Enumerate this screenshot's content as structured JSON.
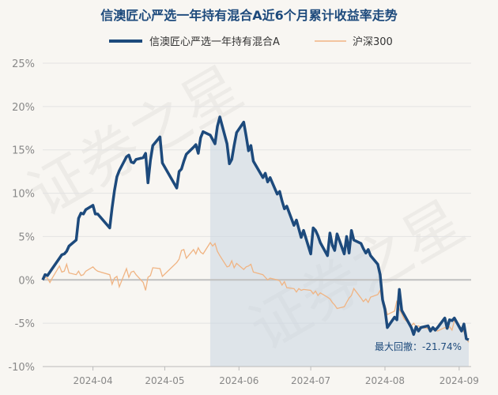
{
  "chart_data": {
    "type": "line",
    "title": "信澳匠心严选一年持有混合A近6个月累计收益率走势",
    "legend_position": "top",
    "ylim": [
      -10,
      25
    ],
    "y_ticks": [
      "25%",
      "20%",
      "15%",
      "10%",
      "5%",
      "0%",
      "-5%",
      "-10%"
    ],
    "y_tick_values": [
      25,
      20,
      15,
      10,
      5,
      0,
      -5,
      -10
    ],
    "x_range": [
      "2024-03-11",
      "2024-09-06"
    ],
    "x_ticks": [
      "2024-04",
      "2024-05",
      "2024-06",
      "2024-07",
      "2024-08",
      "2024-09"
    ],
    "x_tick_dates": [
      "2024-04-01",
      "2024-05-01",
      "2024-06-01",
      "2024-07-01",
      "2024-08-01",
      "2024-09-01"
    ],
    "grid": true,
    "drawdown_region": [
      "2024-05-20",
      "2024-09-06"
    ],
    "annotation": "最大回撤：-21.74%",
    "colors": {
      "fund": "#1d4a7c",
      "index": "#f0b483",
      "shade": "#c9d6e2",
      "zero": "#c0c0c0",
      "grid": "#e3e3e3",
      "axis_text": "#888888",
      "title": "#1d4a7c"
    },
    "series": [
      {
        "name": "信澳匠心严选一年持有混合A",
        "points": [
          [
            "2024-03-11",
            0
          ],
          [
            "2024-03-12",
            0.6
          ],
          [
            "2024-03-13",
            0.5
          ],
          [
            "2024-03-14",
            0.9
          ],
          [
            "2024-03-15",
            1.3
          ],
          [
            "2024-03-18",
            2.5
          ],
          [
            "2024-03-19",
            2.9
          ],
          [
            "2024-03-20",
            3.0
          ],
          [
            "2024-03-21",
            3.3
          ],
          [
            "2024-03-22",
            3.9
          ],
          [
            "2024-03-25",
            4.6
          ],
          [
            "2024-03-26",
            7.1
          ],
          [
            "2024-03-27",
            7.7
          ],
          [
            "2024-03-28",
            7.6
          ],
          [
            "2024-03-29",
            8.1
          ],
          [
            "2024-04-01",
            8.6
          ],
          [
            "2024-04-02",
            7.6
          ],
          [
            "2024-04-03",
            7.6
          ],
          [
            "2024-04-08",
            6.0
          ],
          [
            "2024-04-09",
            8.3
          ],
          [
            "2024-04-10",
            10.3
          ],
          [
            "2024-04-11",
            11.9
          ],
          [
            "2024-04-12",
            12.6
          ],
          [
            "2024-04-15",
            14.2
          ],
          [
            "2024-04-16",
            14.4
          ],
          [
            "2024-04-17",
            13.6
          ],
          [
            "2024-04-18",
            13.5
          ],
          [
            "2024-04-19",
            13.9
          ],
          [
            "2024-04-22",
            14.1
          ],
          [
            "2024-04-23",
            14.6
          ],
          [
            "2024-04-24",
            11.2
          ],
          [
            "2024-04-25",
            13.8
          ],
          [
            "2024-04-26",
            15.5
          ],
          [
            "2024-04-29",
            16.5
          ],
          [
            "2024-04-30",
            13.5
          ],
          [
            "2024-05-06",
            10.6
          ],
          [
            "2024-05-07",
            12.5
          ],
          [
            "2024-05-08",
            12.8
          ],
          [
            "2024-05-09",
            13.7
          ],
          [
            "2024-05-10",
            14.5
          ],
          [
            "2024-05-13",
            15.3
          ],
          [
            "2024-05-14",
            15.6
          ],
          [
            "2024-05-15",
            14.6
          ],
          [
            "2024-05-16",
            16.4
          ],
          [
            "2024-05-17",
            17.1
          ],
          [
            "2024-05-20",
            16.7
          ],
          [
            "2024-05-21",
            16.2
          ],
          [
            "2024-05-22",
            15.7
          ],
          [
            "2024-05-23",
            17.7
          ],
          [
            "2024-05-24",
            18.8
          ],
          [
            "2024-05-27",
            15.7
          ],
          [
            "2024-05-28",
            13.4
          ],
          [
            "2024-05-29",
            13.9
          ],
          [
            "2024-05-30",
            15.5
          ],
          [
            "2024-05-31",
            17.0
          ],
          [
            "2024-06-03",
            18.2
          ],
          [
            "2024-06-04",
            16.6
          ],
          [
            "2024-06-05",
            14.9
          ],
          [
            "2024-06-06",
            15.5
          ],
          [
            "2024-06-07",
            13.7
          ],
          [
            "2024-06-11",
            11.8
          ],
          [
            "2024-06-12",
            12.3
          ],
          [
            "2024-06-13",
            11.3
          ],
          [
            "2024-06-14",
            11.8
          ],
          [
            "2024-06-17",
            9.9
          ],
          [
            "2024-06-18",
            10.2
          ],
          [
            "2024-06-19",
            9.1
          ],
          [
            "2024-06-20",
            8.2
          ],
          [
            "2024-06-21",
            8.5
          ],
          [
            "2024-06-24",
            6.3
          ],
          [
            "2024-06-25",
            6.9
          ],
          [
            "2024-06-26",
            5.9
          ],
          [
            "2024-06-27",
            4.9
          ],
          [
            "2024-06-28",
            5.7
          ],
          [
            "2024-07-01",
            3.0
          ],
          [
            "2024-07-02",
            6.0
          ],
          [
            "2024-07-03",
            5.7
          ],
          [
            "2024-07-04",
            5.1
          ],
          [
            "2024-07-05",
            4.3
          ],
          [
            "2024-07-08",
            2.8
          ],
          [
            "2024-07-09",
            5.4
          ],
          [
            "2024-07-10",
            4.0
          ],
          [
            "2024-07-11",
            3.4
          ],
          [
            "2024-07-12",
            5.3
          ],
          [
            "2024-07-15",
            3.0
          ],
          [
            "2024-07-16",
            5.0
          ],
          [
            "2024-07-17",
            3.1
          ],
          [
            "2024-07-18",
            5.7
          ],
          [
            "2024-07-19",
            4.6
          ],
          [
            "2024-07-22",
            4.2
          ],
          [
            "2024-07-23",
            3.6
          ],
          [
            "2024-07-24",
            3.1
          ],
          [
            "2024-07-25",
            3.5
          ],
          [
            "2024-07-26",
            2.8
          ],
          [
            "2024-07-29",
            1.8
          ],
          [
            "2024-07-30",
            0.6
          ],
          [
            "2024-07-31",
            -2.3
          ],
          [
            "2024-08-01",
            -3.4
          ],
          [
            "2024-08-02",
            -5.5
          ],
          [
            "2024-08-05",
            -4.3
          ],
          [
            "2024-08-06",
            -4.6
          ],
          [
            "2024-08-07",
            -1.1
          ],
          [
            "2024-08-08",
            -3.5
          ],
          [
            "2024-08-09",
            -4.0
          ],
          [
            "2024-08-12",
            -5.5
          ],
          [
            "2024-08-13",
            -6.3
          ],
          [
            "2024-08-14",
            -5.4
          ],
          [
            "2024-08-15",
            -5.9
          ],
          [
            "2024-08-16",
            -5.5
          ],
          [
            "2024-08-19",
            -5.3
          ],
          [
            "2024-08-20",
            -5.9
          ],
          [
            "2024-08-21",
            -5.5
          ],
          [
            "2024-08-22",
            -5.8
          ],
          [
            "2024-08-23",
            -5.5
          ],
          [
            "2024-08-26",
            -4.4
          ],
          [
            "2024-08-27",
            -5.6
          ],
          [
            "2024-08-28",
            -4.6
          ],
          [
            "2024-08-29",
            -4.7
          ],
          [
            "2024-08-30",
            -4.4
          ],
          [
            "2024-09-02",
            -5.9
          ],
          [
            "2024-09-03",
            -5.1
          ],
          [
            "2024-09-04",
            -6.8
          ],
          [
            "2024-09-05",
            -6.9
          ]
        ]
      },
      {
        "name": "沪深300",
        "points": [
          [
            "2024-03-11",
            0
          ],
          [
            "2024-03-12",
            0.3
          ],
          [
            "2024-03-13",
            0.2
          ],
          [
            "2024-03-14",
            -0.3
          ],
          [
            "2024-03-15",
            0.2
          ],
          [
            "2024-03-18",
            1.6
          ],
          [
            "2024-03-19",
            0.9
          ],
          [
            "2024-03-20",
            1.0
          ],
          [
            "2024-03-21",
            1.8
          ],
          [
            "2024-03-22",
            0.8
          ],
          [
            "2024-03-25",
            0.6
          ],
          [
            "2024-03-26",
            1.0
          ],
          [
            "2024-03-27",
            0.5
          ],
          [
            "2024-03-28",
            0.6
          ],
          [
            "2024-03-29",
            1.0
          ],
          [
            "2024-04-01",
            1.5
          ],
          [
            "2024-04-02",
            1.2
          ],
          [
            "2024-04-03",
            1.0
          ],
          [
            "2024-04-08",
            0.6
          ],
          [
            "2024-04-09",
            -0.5
          ],
          [
            "2024-04-10",
            0.2
          ],
          [
            "2024-04-11",
            0.4
          ],
          [
            "2024-04-12",
            -0.8
          ],
          [
            "2024-04-15",
            1.3
          ],
          [
            "2024-04-16",
            0.3
          ],
          [
            "2024-04-17",
            0.9
          ],
          [
            "2024-04-18",
            1.0
          ],
          [
            "2024-04-19",
            0.6
          ],
          [
            "2024-04-22",
            -0.3
          ],
          [
            "2024-04-23",
            -1.2
          ],
          [
            "2024-04-24",
            0.3
          ],
          [
            "2024-04-25",
            0.5
          ],
          [
            "2024-04-26",
            1.4
          ],
          [
            "2024-04-29",
            1.3
          ],
          [
            "2024-04-30",
            0.4
          ],
          [
            "2024-05-06",
            2.0
          ],
          [
            "2024-05-07",
            2.4
          ],
          [
            "2024-05-08",
            3.4
          ],
          [
            "2024-05-09",
            3.5
          ],
          [
            "2024-05-10",
            2.5
          ],
          [
            "2024-05-13",
            3.5
          ],
          [
            "2024-05-14",
            3.0
          ],
          [
            "2024-05-15",
            3.7
          ],
          [
            "2024-05-16",
            3.2
          ],
          [
            "2024-05-17",
            3.0
          ],
          [
            "2024-05-20",
            4.3
          ],
          [
            "2024-05-21",
            3.9
          ],
          [
            "2024-05-22",
            4.2
          ],
          [
            "2024-05-23",
            3.3
          ],
          [
            "2024-05-24",
            2.8
          ],
          [
            "2024-05-27",
            1.5
          ],
          [
            "2024-05-28",
            1.6
          ],
          [
            "2024-05-29",
            2.2
          ],
          [
            "2024-05-30",
            1.4
          ],
          [
            "2024-05-31",
            1.9
          ],
          [
            "2024-06-03",
            1.2
          ],
          [
            "2024-06-04",
            1.5
          ],
          [
            "2024-06-05",
            1.6
          ],
          [
            "2024-06-06",
            1.8
          ],
          [
            "2024-06-07",
            0.9
          ],
          [
            "2024-06-11",
            0.6
          ],
          [
            "2024-06-12",
            0.3
          ],
          [
            "2024-06-13",
            0.0
          ],
          [
            "2024-06-14",
            0.2
          ],
          [
            "2024-06-17",
            0.0
          ],
          [
            "2024-06-18",
            -0.1
          ],
          [
            "2024-06-19",
            -0.6
          ],
          [
            "2024-06-20",
            -0.2
          ],
          [
            "2024-06-21",
            -0.9
          ],
          [
            "2024-06-24",
            -1.0
          ],
          [
            "2024-06-25",
            -1.4
          ],
          [
            "2024-06-26",
            -1.0
          ],
          [
            "2024-06-27",
            -1.2
          ],
          [
            "2024-06-28",
            -1.1
          ],
          [
            "2024-07-01",
            -1.2
          ],
          [
            "2024-07-02",
            -1.6
          ],
          [
            "2024-07-03",
            -1.3
          ],
          [
            "2024-07-04",
            -1.8
          ],
          [
            "2024-07-05",
            -1.5
          ],
          [
            "2024-07-08",
            -2.0
          ],
          [
            "2024-07-09",
            -2.2
          ],
          [
            "2024-07-10",
            -2.6
          ],
          [
            "2024-07-11",
            -2.9
          ],
          [
            "2024-07-12",
            -3.3
          ],
          [
            "2024-07-15",
            -3.1
          ],
          [
            "2024-07-16",
            -2.6
          ],
          [
            "2024-07-17",
            -2.1
          ],
          [
            "2024-07-18",
            -1.8
          ],
          [
            "2024-07-19",
            -1.0
          ],
          [
            "2024-07-22",
            -2.1
          ],
          [
            "2024-07-23",
            -2.5
          ],
          [
            "2024-07-24",
            -2.2
          ],
          [
            "2024-07-25",
            -2.6
          ],
          [
            "2024-07-26",
            -2.0
          ],
          [
            "2024-07-29",
            -1.7
          ],
          [
            "2024-07-30",
            -1.2
          ],
          [
            "2024-07-31",
            -2.8
          ],
          [
            "2024-08-01",
            -2.9
          ],
          [
            "2024-08-02",
            -4.0
          ],
          [
            "2024-08-05",
            -3.6
          ],
          [
            "2024-08-06",
            -2.4
          ],
          [
            "2024-08-07",
            -3.4
          ],
          [
            "2024-08-08",
            -3.9
          ],
          [
            "2024-08-09",
            -4.5
          ],
          [
            "2024-08-12",
            -5.3
          ],
          [
            "2024-08-13",
            -5.0
          ],
          [
            "2024-08-14",
            -5.4
          ],
          [
            "2024-08-15",
            -5.3
          ],
          [
            "2024-08-16",
            -5.5
          ],
          [
            "2024-08-19",
            -5.6
          ],
          [
            "2024-08-20",
            -6.0
          ],
          [
            "2024-08-21",
            -5.7
          ],
          [
            "2024-08-22",
            -5.8
          ],
          [
            "2024-08-23",
            -5.9
          ],
          [
            "2024-08-26",
            -5.5
          ],
          [
            "2024-08-27",
            -5.7
          ],
          [
            "2024-08-28",
            -5.4
          ],
          [
            "2024-08-29",
            -5.8
          ],
          [
            "2024-08-30",
            -4.7
          ],
          [
            "2024-09-02",
            -5.6
          ],
          [
            "2024-09-03",
            -6.0
          ],
          [
            "2024-09-04",
            -6.8
          ],
          [
            "2024-09-05",
            -7.2
          ]
        ]
      }
    ]
  }
}
